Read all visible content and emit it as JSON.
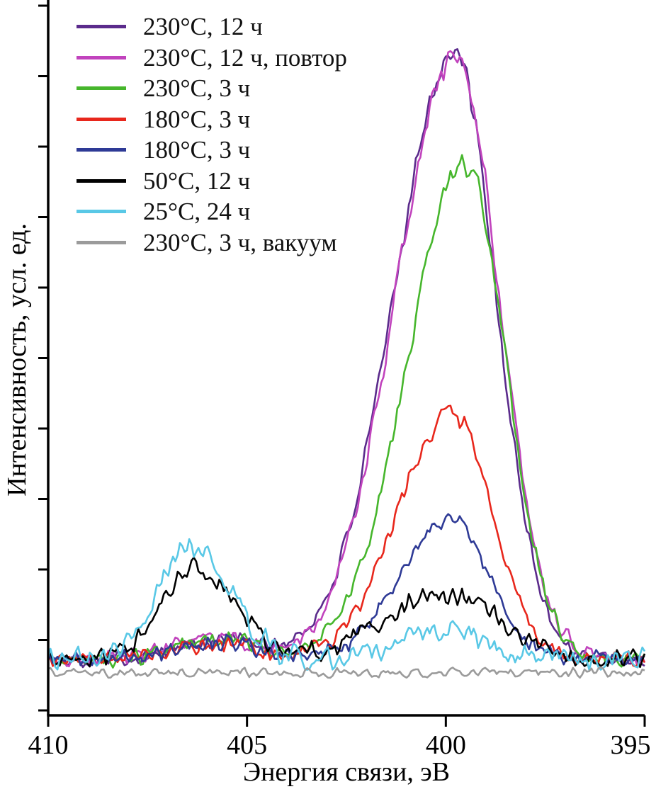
{
  "figure": {
    "title": "",
    "xlabel": "Энергия связи, эВ",
    "ylabel": "Интенсивность, усл. ед."
  },
  "chart_data": {
    "type": "line",
    "title": "",
    "xlabel": "Энергия связи, эВ",
    "ylabel": "Интенсивность, усл. ед.",
    "x_axis": {
      "min": 395,
      "max": 410,
      "reversed": true,
      "ticks": [
        410,
        405,
        400,
        395
      ]
    },
    "y_axis": {
      "label": "Интенсивность, усл. ед.",
      "units": "arbitrary",
      "tick_labels": []
    },
    "legend_position": "top-left",
    "grid": false,
    "series": [
      {
        "name": "230°C, 12 ч",
        "color": "#5b2b8c",
        "baseline": 0.08,
        "noise": 0.015,
        "seed": 101,
        "peaks": [
          {
            "center": 399.8,
            "height": 0.92,
            "sigma_left": 1.5,
            "sigma_right": 1.05
          },
          {
            "center": 405.6,
            "height": 0.03,
            "sigma_left": 1.1,
            "sigma_right": 0.9
          }
        ]
      },
      {
        "name": "230°C, 12 ч, повтор",
        "color": "#c143bd",
        "baseline": 0.08,
        "noise": 0.016,
        "seed": 202,
        "peaks": [
          {
            "center": 399.75,
            "height": 0.915,
            "sigma_left": 1.5,
            "sigma_right": 1.08
          },
          {
            "center": 405.7,
            "height": 0.03,
            "sigma_left": 1.1,
            "sigma_right": 0.9
          }
        ]
      },
      {
        "name": "230°C, 3 ч",
        "color": "#46b62c",
        "baseline": 0.08,
        "noise": 0.015,
        "seed": 303,
        "peaks": [
          {
            "center": 399.5,
            "height": 0.75,
            "sigma_left": 1.45,
            "sigma_right": 1.0
          },
          {
            "center": 405.6,
            "height": 0.03,
            "sigma_left": 1.0,
            "sigma_right": 0.9
          }
        ]
      },
      {
        "name": "180°C, 3 ч",
        "color": "#e8271c",
        "baseline": 0.08,
        "noise": 0.015,
        "seed": 404,
        "peaks": [
          {
            "center": 399.85,
            "height": 0.37,
            "sigma_left": 1.35,
            "sigma_right": 1.0
          },
          {
            "center": 405.6,
            "height": 0.025,
            "sigma_left": 1.0,
            "sigma_right": 0.9
          }
        ]
      },
      {
        "name": "180°C, 3 ч",
        "color": "#2e3a96",
        "baseline": 0.08,
        "noise": 0.015,
        "seed": 505,
        "peaks": [
          {
            "center": 399.85,
            "height": 0.215,
            "sigma_left": 1.25,
            "sigma_right": 0.95
          },
          {
            "center": 405.7,
            "height": 0.025,
            "sigma_left": 1.0,
            "sigma_right": 0.9
          }
        ]
      },
      {
        "name": "50°C, 12 ч",
        "color": "#000000",
        "baseline": 0.08,
        "noise": 0.019,
        "seed": 606,
        "peaks": [
          {
            "center": 406.3,
            "height": 0.14,
            "sigma_left": 0.85,
            "sigma_right": 1.0
          },
          {
            "center": 400.0,
            "height": 0.1,
            "sigma_left": 1.5,
            "sigma_right": 1.3
          }
        ]
      },
      {
        "name": "25°C, 24 ч",
        "color": "#59c8e6",
        "baseline": 0.08,
        "noise": 0.021,
        "seed": 707,
        "peaks": [
          {
            "center": 406.4,
            "height": 0.175,
            "sigma_left": 0.8,
            "sigma_right": 0.95
          },
          {
            "center": 399.9,
            "height": 0.045,
            "sigma_left": 1.2,
            "sigma_right": 1.0
          }
        ]
      },
      {
        "name": "230°C, 3 ч, вакуум",
        "color": "#9b9b9b",
        "baseline": 0.06,
        "noise": 0.009,
        "seed": 808,
        "peaks": []
      }
    ]
  }
}
